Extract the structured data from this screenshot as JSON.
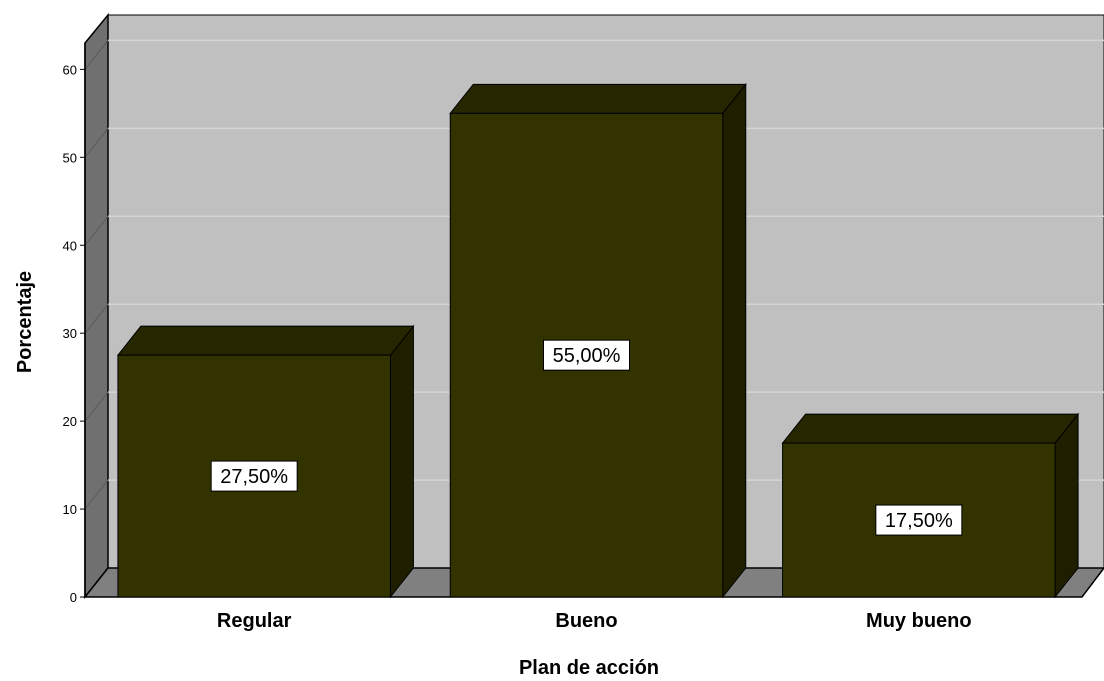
{
  "chart_data": {
    "type": "bar",
    "categories": [
      "Regular",
      "Bueno",
      "Muy bueno"
    ],
    "values": [
      27.5,
      55.0,
      17.5
    ],
    "data_labels": [
      "27,50%",
      "55,00%",
      "17,50%"
    ],
    "xlabel": "Plan de acción",
    "ylabel": "Porcentaje",
    "ylim": [
      0,
      63
    ],
    "yticks": [
      0,
      10,
      20,
      30,
      40,
      50,
      60
    ],
    "grid": true,
    "style": "3d",
    "colors": {
      "bar_front": "#333300",
      "bar_top": "#262600",
      "bar_side": "#1f1f00",
      "plot_back": "#c0c0c0",
      "plot_floor": "#808080",
      "plot_left_wall": "#707070",
      "gridline": "#d4d4d4"
    }
  }
}
